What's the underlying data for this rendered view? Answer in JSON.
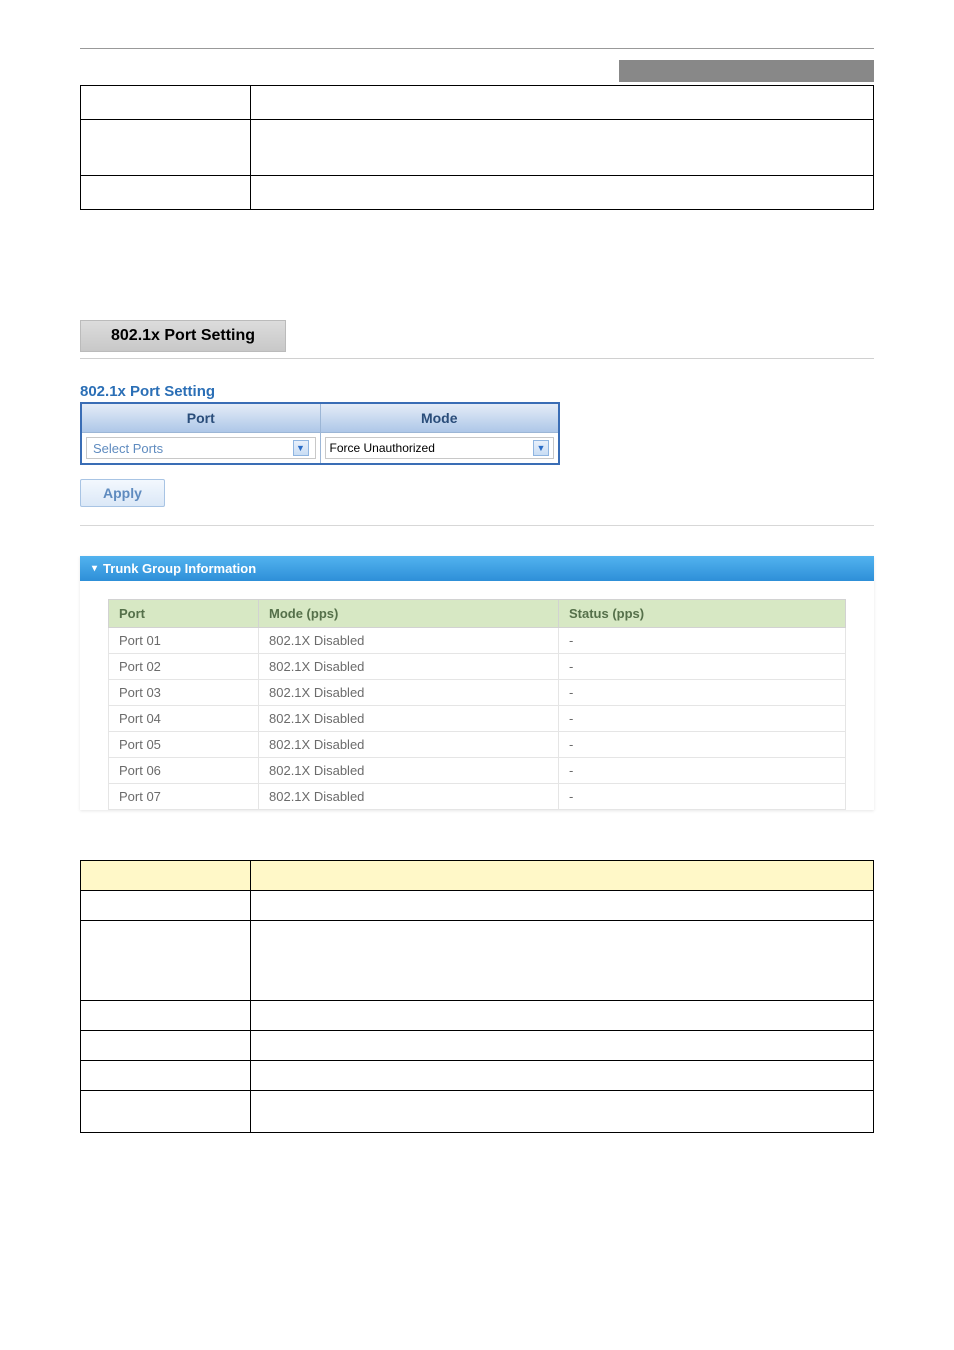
{
  "top_table": {
    "rows": [
      {
        "c1": "",
        "c2": "",
        "tall": false
      },
      {
        "c1": "",
        "c2": "",
        "tall": true
      },
      {
        "c1": "",
        "c2": "",
        "tall": false
      }
    ]
  },
  "section_title": "802.1x Port Setting",
  "port_setting": {
    "title": "802.1x Port Setting",
    "columns": [
      "Port",
      "Mode"
    ],
    "port_select_label": "Select Ports",
    "mode_select_value": "Force Unauthorized",
    "apply_label": "Apply"
  },
  "trunk_panel": {
    "title": "Trunk Group Information",
    "columns": [
      "Port",
      "Mode (pps)",
      "Status (pps)"
    ],
    "rows": [
      {
        "port": "Port 01",
        "mode": "802.1X Disabled",
        "status": "-"
      },
      {
        "port": "Port 02",
        "mode": "802.1X Disabled",
        "status": "-"
      },
      {
        "port": "Port 03",
        "mode": "802.1X Disabled",
        "status": "-"
      },
      {
        "port": "Port 04",
        "mode": "802.1X Disabled",
        "status": "-"
      },
      {
        "port": "Port 05",
        "mode": "802.1X Disabled",
        "status": "-"
      },
      {
        "port": "Port 06",
        "mode": "802.1X Disabled",
        "status": "-"
      },
      {
        "port": "Port 07",
        "mode": "802.1X Disabled",
        "status": "-"
      }
    ]
  },
  "param_table": {
    "header_bg": "#fff8c8",
    "rows": [
      {
        "c1": "",
        "c2": "",
        "style": "header"
      },
      {
        "c1": "",
        "c2": "",
        "style": "normal"
      },
      {
        "c1": "",
        "c2": "",
        "style": "tall"
      },
      {
        "c1": "",
        "c2": "",
        "style": "normal"
      },
      {
        "c1": "",
        "c2": "",
        "style": "normal"
      },
      {
        "c1": "",
        "c2": "",
        "style": "normal"
      },
      {
        "c1": "",
        "c2": "",
        "style": "tall2"
      }
    ]
  },
  "colors": {
    "blue_title": "#2b6fb6",
    "header_grad_top": "#e4ecf7",
    "header_grad_bottom": "#aec7e8",
    "trunk_grad_top": "#52b3ef",
    "trunk_grad_bottom": "#2e8fd8",
    "green_header": "#d7e8c4",
    "yellow_header": "#fff8c8",
    "gray_bar": "#888888"
  }
}
